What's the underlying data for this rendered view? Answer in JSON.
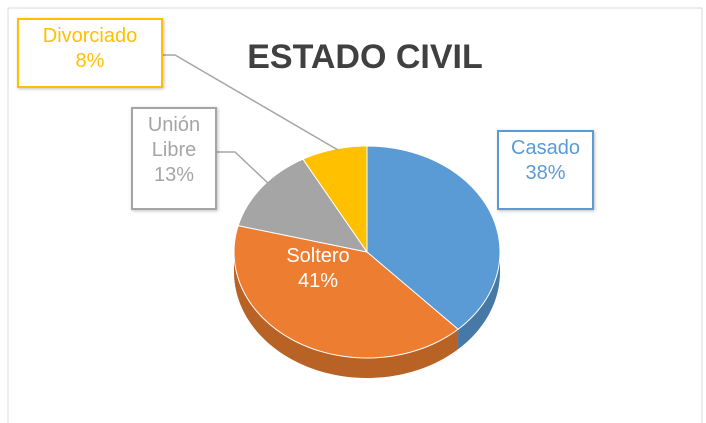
{
  "chart_data": {
    "type": "pie3d",
    "title": "ESTADO CIVIL",
    "categories": [
      "Casado",
      "Soltero",
      "Unión Libre",
      "Divorciado"
    ],
    "values": [
      38,
      41,
      13,
      8
    ],
    "value_labels": [
      "38%",
      "41%",
      "13%",
      "8%"
    ],
    "colors": [
      "#5b9bd5",
      "#ed7d31",
      "#a5a5a5",
      "#ffc000"
    ]
  }
}
